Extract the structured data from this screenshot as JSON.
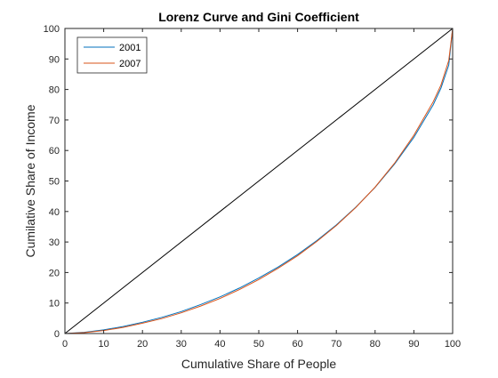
{
  "chart_data": {
    "type": "line",
    "title": "Lorenz Curve and Gini Coefficient",
    "xlabel": "Cumulative Share of People",
    "ylabel": "Cumilative Share of Income",
    "xlim": [
      0,
      100
    ],
    "ylim": [
      0,
      100
    ],
    "xticks": [
      0,
      10,
      20,
      30,
      40,
      50,
      60,
      70,
      80,
      90,
      100
    ],
    "yticks": [
      0,
      10,
      20,
      30,
      40,
      50,
      60,
      70,
      80,
      90,
      100
    ],
    "grid": false,
    "legend_position": "top-left",
    "equality_line": {
      "x": [
        0,
        100
      ],
      "y": [
        0,
        100
      ],
      "color": "#000000"
    },
    "series": [
      {
        "name": "2001",
        "color": "#0072BD",
        "x": [
          0,
          5,
          10,
          15,
          20,
          25,
          30,
          35,
          40,
          45,
          50,
          55,
          60,
          65,
          70,
          75,
          80,
          85,
          90,
          95,
          97,
          99,
          100
        ],
        "y": [
          0,
          0.4,
          1.2,
          2.3,
          3.7,
          5.3,
          7.2,
          9.5,
          12.0,
          14.9,
          18.2,
          21.8,
          25.9,
          30.5,
          35.6,
          41.4,
          47.9,
          55.5,
          64.3,
          75.0,
          80.5,
          88.0,
          100
        ]
      },
      {
        "name": "2007",
        "color": "#D95319",
        "x": [
          0,
          5,
          10,
          15,
          20,
          25,
          30,
          35,
          40,
          45,
          50,
          55,
          60,
          65,
          70,
          75,
          80,
          85,
          90,
          95,
          97,
          99,
          100
        ],
        "y": [
          0,
          0.3,
          1.0,
          2.0,
          3.4,
          4.9,
          6.8,
          9.0,
          11.5,
          14.4,
          17.7,
          21.4,
          25.5,
          30.2,
          35.4,
          41.3,
          48.0,
          55.8,
          65.0,
          76.0,
          81.5,
          89.5,
          100
        ]
      }
    ]
  }
}
